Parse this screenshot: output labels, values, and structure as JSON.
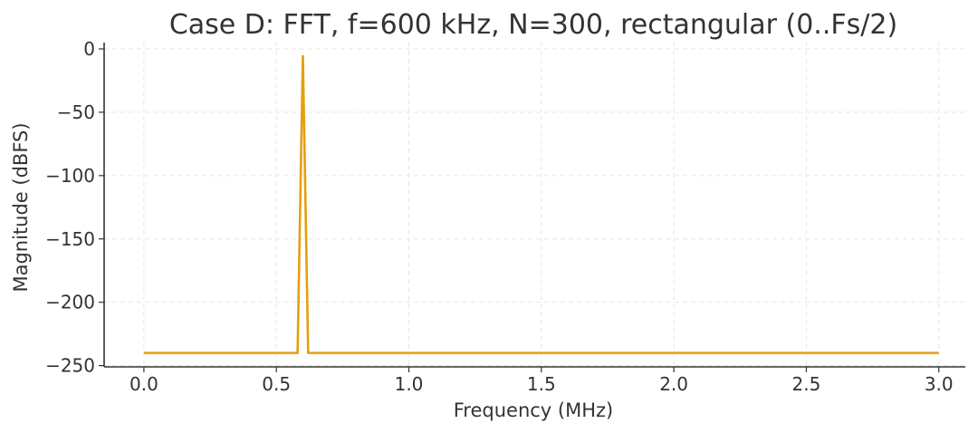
{
  "chart_data": {
    "type": "line",
    "title": "Case D: FFT, f=600 kHz, N=300, rectangular (0..Fs/2)",
    "xlabel": "Frequency (MHz)",
    "ylabel": "Magnitude (dBFS)",
    "xlim": [
      -0.15,
      3.1
    ],
    "ylim": [
      -251,
      5
    ],
    "x_ticks": [
      0.0,
      0.5,
      1.0,
      1.5,
      2.0,
      2.5,
      3.0
    ],
    "x_tick_labels": [
      "0.0",
      "0.5",
      "1.0",
      "1.5",
      "2.0",
      "2.5",
      "3.0"
    ],
    "y_ticks": [
      0,
      -50,
      -100,
      -150,
      -200,
      -250
    ],
    "y_tick_labels": [
      "0",
      "−50",
      "−100",
      "−150",
      "−200",
      "−250"
    ],
    "grid": true,
    "series": [
      {
        "color": "#e5a00d",
        "x": [
          0.0,
          0.58,
          0.6,
          0.62,
          3.0
        ],
        "y": [
          -240,
          -240,
          -5,
          -240,
          -240
        ]
      }
    ]
  }
}
